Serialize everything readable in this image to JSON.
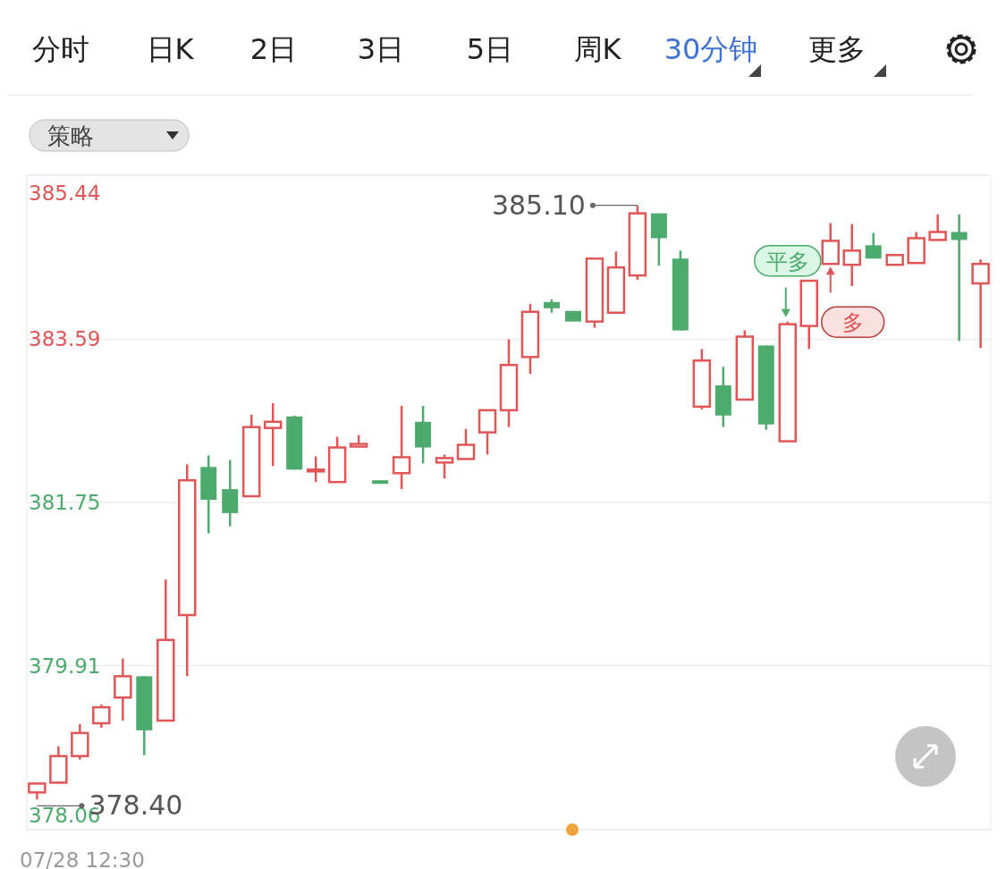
{
  "chart_data": {
    "type": "candlestick",
    "categories": [
      null,
      null,
      null,
      null,
      null,
      null,
      null,
      null,
      null,
      null,
      null,
      null,
      null,
      null,
      null,
      null,
      null,
      null,
      null,
      null,
      null,
      null,
      null,
      null,
      null,
      null,
      null,
      null,
      null,
      null,
      null,
      null,
      null,
      null,
      null,
      null,
      null,
      null,
      null,
      null,
      null,
      null,
      null,
      null,
      null
    ],
    "ohlc": [
      [
        378.48,
        378.58,
        378.4,
        378.58
      ],
      [
        378.59,
        379.0,
        378.59,
        378.89
      ],
      [
        378.89,
        379.25,
        378.85,
        379.15
      ],
      [
        379.26,
        379.47,
        379.21,
        379.44
      ],
      [
        379.55,
        379.99,
        379.29,
        379.79
      ],
      [
        379.79,
        379.79,
        378.9,
        379.18
      ],
      [
        379.29,
        380.88,
        379.29,
        380.2
      ],
      [
        380.48,
        382.18,
        379.79,
        382.0
      ],
      [
        382.15,
        382.28,
        381.4,
        381.78
      ],
      [
        381.9,
        382.23,
        381.48,
        381.63
      ],
      [
        381.82,
        382.74,
        381.82,
        382.6
      ],
      [
        382.59,
        382.87,
        382.16,
        382.66
      ],
      [
        382.72,
        382.73,
        382.12,
        382.12
      ],
      [
        382.1,
        382.27,
        381.98,
        382.12
      ],
      [
        381.98,
        382.49,
        381.98,
        382.37
      ],
      [
        382.38,
        382.51,
        382.38,
        382.41
      ],
      [
        382.0,
        382.0,
        381.96,
        381.96
      ],
      [
        382.08,
        382.84,
        381.9,
        382.26
      ],
      [
        382.66,
        382.84,
        382.19,
        382.37
      ],
      [
        382.2,
        382.29,
        382.02,
        382.25
      ],
      [
        382.24,
        382.58,
        382.24,
        382.4
      ],
      [
        382.54,
        382.79,
        382.29,
        382.79
      ],
      [
        382.79,
        383.59,
        382.6,
        383.3
      ],
      [
        383.39,
        383.99,
        383.2,
        383.9
      ],
      [
        384.01,
        384.04,
        383.89,
        383.94
      ],
      [
        383.91,
        383.91,
        383.79,
        383.79
      ],
      [
        383.79,
        384.5,
        383.72,
        384.5
      ],
      [
        383.89,
        384.58,
        383.89,
        384.4
      ],
      [
        384.31,
        385.1,
        384.26,
        385.01
      ],
      [
        385.01,
        385.01,
        384.42,
        384.73
      ],
      [
        384.5,
        384.59,
        383.69,
        383.69
      ],
      [
        382.83,
        383.48,
        382.8,
        383.35
      ],
      [
        383.07,
        383.28,
        382.6,
        382.73
      ],
      [
        382.91,
        383.69,
        382.9,
        383.62
      ],
      [
        383.52,
        383.52,
        382.57,
        382.63
      ],
      [
        382.44,
        383.79,
        382.44,
        383.76
      ],
      [
        383.74,
        384.25,
        383.48,
        384.25
      ],
      [
        384.44,
        384.9,
        384.44,
        384.7
      ],
      [
        384.43,
        384.89,
        384.19,
        384.59
      ],
      [
        384.65,
        384.79,
        384.5,
        384.5
      ],
      [
        384.43,
        384.54,
        384.43,
        384.54
      ],
      [
        384.45,
        384.8,
        384.45,
        384.73
      ],
      [
        384.71,
        385.0,
        384.71,
        384.8
      ],
      [
        384.8,
        385.0,
        383.57,
        384.71
      ],
      [
        384.22,
        384.49,
        383.49,
        384.44
      ]
    ],
    "colors": [
      "#e05555",
      "#e05555",
      "#e05555",
      "#e05555",
      "#e05555",
      "#4caa6c",
      "#e05555",
      "#e05555",
      "#4caa6c",
      "#4caa6c",
      "#e05555",
      "#e05555",
      "#4caa6c",
      "#e05555",
      "#e05555",
      "#e05555",
      "#4caa6c",
      "#e05555",
      "#4caa6c",
      "#e05555",
      "#e05555",
      "#e05555",
      "#e05555",
      "#e05555",
      "#4caa6c",
      "#4caa6c",
      "#e05555",
      "#e05555",
      "#e05555",
      "#4caa6c",
      "#4caa6c",
      "#e05555",
      "#4caa6c",
      "#e05555",
      "#4caa6c",
      "#e05555",
      "#e05555",
      "#e05555",
      "#e05555",
      "#4caa6c",
      "#e05555",
      "#e05555",
      "#e05555",
      "#4caa6c",
      "#e05555"
    ],
    "ylim": [
      378.06,
      385.44
    ],
    "yticks": [
      385.44,
      383.59,
      381.75,
      379.91,
      378.06
    ],
    "grid": true,
    "annotations": [
      "分时",
      "日K",
      "2日",
      "3日",
      "5日",
      "周K",
      "30分钟",
      "更多",
      "策略",
      "07/28 12:30",
      "385.10",
      "378.40",
      {
        "text": "平多",
        "y": 383.79
      },
      {
        "text": "多",
        "y": 384.44
      }
    ]
  }
}
